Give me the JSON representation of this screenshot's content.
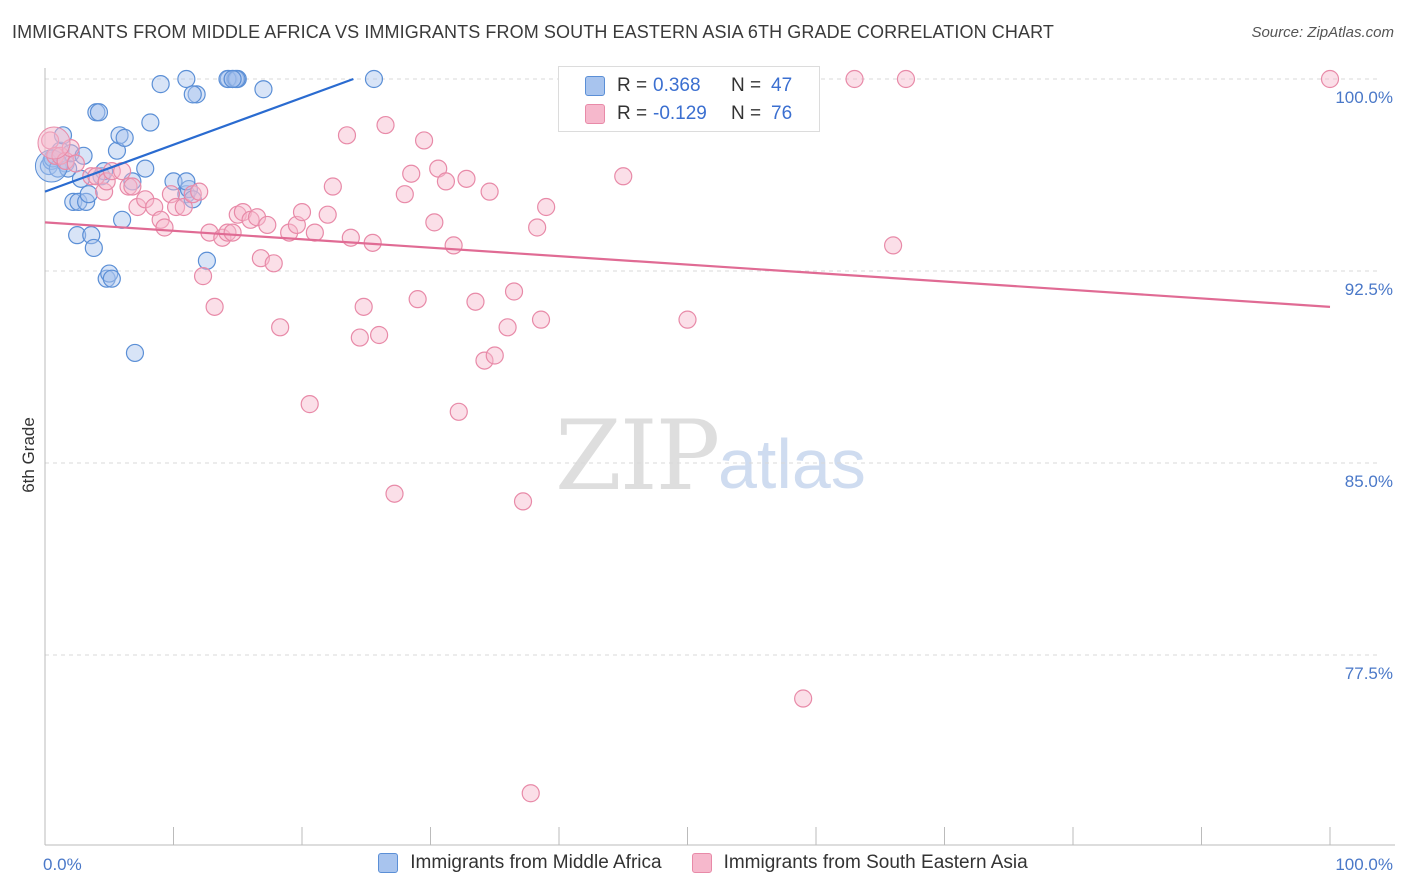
{
  "title": "IMMIGRANTS FROM MIDDLE AFRICA VS IMMIGRANTS FROM SOUTH EASTERN ASIA 6TH GRADE CORRELATION CHART",
  "source": "Source: ZipAtlas.com",
  "watermark": {
    "zip": "ZIP",
    "atlas": "atlas"
  },
  "legend": {
    "r_label": "R =",
    "n_label": "N =",
    "rows": [
      {
        "r": "0.368",
        "n": "47"
      },
      {
        "r": "-0.129",
        "n": "76"
      }
    ]
  },
  "colors": {
    "blue_fill": "#a8c4ee",
    "blue_stroke": "#5b8fd6",
    "blue_line": "#2a6bd0",
    "pink_fill": "#f6b8cc",
    "pink_stroke": "#e88aa8",
    "pink_line": "#e06b94",
    "grid": "#d8d8d8",
    "tick_text": "#4a78c8"
  },
  "chart_data": {
    "type": "scatter",
    "xlabel": "",
    "ylabel": "6th Grade",
    "xlim": [
      0,
      100
    ],
    "ylim": [
      71.0,
      101.5
    ],
    "x_tick_labels": [
      "0.0%",
      "100.0%"
    ],
    "y_ticks": [
      100.0,
      92.5,
      85.0,
      77.5
    ],
    "y_tick_labels": [
      "100.0%",
      "92.5%",
      "85.0%",
      "77.5%"
    ],
    "grid": true,
    "series": [
      {
        "name": "Immigrants from Middle Africa",
        "color": "blue",
        "trend": {
          "x": [
            0,
            24
          ],
          "y": [
            95.6,
            100.0
          ]
        },
        "points": [
          [
            0.3,
            96.6
          ],
          [
            0.5,
            96.8
          ],
          [
            0.6,
            96.9
          ],
          [
            0.8,
            97.0
          ],
          [
            1.0,
            96.5
          ],
          [
            1.2,
            97.2
          ],
          [
            1.4,
            97.8
          ],
          [
            1.6,
            96.7
          ],
          [
            1.8,
            96.5
          ],
          [
            2.0,
            97.1
          ],
          [
            2.2,
            95.2
          ],
          [
            2.5,
            93.9
          ],
          [
            2.6,
            95.2
          ],
          [
            2.8,
            96.1
          ],
          [
            3.0,
            97.0
          ],
          [
            3.2,
            95.2
          ],
          [
            3.4,
            95.5
          ],
          [
            3.6,
            93.9
          ],
          [
            3.8,
            93.4
          ],
          [
            4.0,
            98.7
          ],
          [
            4.2,
            98.7
          ],
          [
            4.4,
            96.2
          ],
          [
            4.6,
            96.4
          ],
          [
            4.8,
            92.2
          ],
          [
            5.0,
            92.4
          ],
          [
            5.2,
            92.2
          ],
          [
            5.6,
            97.2
          ],
          [
            5.8,
            97.8
          ],
          [
            6.0,
            94.5
          ],
          [
            6.2,
            97.7
          ],
          [
            7.0,
            89.3
          ],
          [
            6.8,
            96.0
          ],
          [
            7.8,
            96.5
          ],
          [
            8.2,
            98.3
          ],
          [
            9.0,
            99.8
          ],
          [
            10.0,
            96.0
          ],
          [
            11.0,
            100.0
          ],
          [
            11.8,
            99.4
          ],
          [
            11.0,
            95.5
          ],
          [
            11.2,
            95.7
          ],
          [
            11.5,
            99.4
          ],
          [
            11.0,
            96.0
          ],
          [
            11.5,
            95.3
          ],
          [
            12.6,
            92.9
          ],
          [
            14.3,
            100.0
          ],
          [
            14.6,
            100.0
          ],
          [
            14.8,
            100.0
          ],
          [
            15.0,
            100.0
          ],
          [
            14.2,
            100.0
          ],
          [
            14.9,
            100.0
          ],
          [
            14.6,
            100.0
          ],
          [
            17.0,
            99.6
          ],
          [
            25.6,
            100.0
          ]
        ],
        "big_points": [
          [
            0.5,
            96.6
          ]
        ]
      },
      {
        "name": "Immigrants from South Eastern Asia",
        "color": "pink",
        "trend": {
          "x": [
            0,
            100
          ],
          "y": [
            94.4,
            91.1
          ]
        },
        "points": [
          [
            0.4,
            97.6
          ],
          [
            0.8,
            97.0
          ],
          [
            1.2,
            97.0
          ],
          [
            1.6,
            96.8
          ],
          [
            2.0,
            97.3
          ],
          [
            2.4,
            96.7
          ],
          [
            3.6,
            96.2
          ],
          [
            4.0,
            96.2
          ],
          [
            4.6,
            95.6
          ],
          [
            4.8,
            96.0
          ],
          [
            5.2,
            96.4
          ],
          [
            6.0,
            96.4
          ],
          [
            6.5,
            95.8
          ],
          [
            6.8,
            95.8
          ],
          [
            7.2,
            95.0
          ],
          [
            7.8,
            95.3
          ],
          [
            8.5,
            95.0
          ],
          [
            9.0,
            94.5
          ],
          [
            9.3,
            94.2
          ],
          [
            9.8,
            95.5
          ],
          [
            10.2,
            95.0
          ],
          [
            10.8,
            95.0
          ],
          [
            11.5,
            95.5
          ],
          [
            12.0,
            95.6
          ],
          [
            12.3,
            92.3
          ],
          [
            12.8,
            94.0
          ],
          [
            13.2,
            91.1
          ],
          [
            13.8,
            93.8
          ],
          [
            14.2,
            94.0
          ],
          [
            14.6,
            94.0
          ],
          [
            15.0,
            94.7
          ],
          [
            15.4,
            94.8
          ],
          [
            16.0,
            94.5
          ],
          [
            16.5,
            94.6
          ],
          [
            16.8,
            93.0
          ],
          [
            17.3,
            94.3
          ],
          [
            17.8,
            92.8
          ],
          [
            18.3,
            90.3
          ],
          [
            19.0,
            94.0
          ],
          [
            19.6,
            94.3
          ],
          [
            20.0,
            94.8
          ],
          [
            20.6,
            87.3
          ],
          [
            21.0,
            94.0
          ],
          [
            22.0,
            94.7
          ],
          [
            22.4,
            95.8
          ],
          [
            23.5,
            97.8
          ],
          [
            23.8,
            93.8
          ],
          [
            24.5,
            89.9
          ],
          [
            24.8,
            91.1
          ],
          [
            25.5,
            93.6
          ],
          [
            26.0,
            90.0
          ],
          [
            26.5,
            98.2
          ],
          [
            27.2,
            83.8
          ],
          [
            28.0,
            95.5
          ],
          [
            28.5,
            96.3
          ],
          [
            29.0,
            91.4
          ],
          [
            29.5,
            97.6
          ],
          [
            30.3,
            94.4
          ],
          [
            30.6,
            96.5
          ],
          [
            31.2,
            96.0
          ],
          [
            31.8,
            93.5
          ],
          [
            32.2,
            87.0
          ],
          [
            32.8,
            96.1
          ],
          [
            33.5,
            91.3
          ],
          [
            34.2,
            89.0
          ],
          [
            34.6,
            95.6
          ],
          [
            35.0,
            89.2
          ],
          [
            36.0,
            90.3
          ],
          [
            36.5,
            91.7
          ],
          [
            37.2,
            83.5
          ],
          [
            38.3,
            94.2
          ],
          [
            38.6,
            90.6
          ],
          [
            39.0,
            95.0
          ],
          [
            37.8,
            72.1
          ],
          [
            45.0,
            96.2
          ],
          [
            50.0,
            90.6
          ],
          [
            59.0,
            75.8
          ],
          [
            63.0,
            100.0
          ],
          [
            67.0,
            100.0
          ],
          [
            66.0,
            93.5
          ],
          [
            100.0,
            100.0
          ]
        ],
        "big_points": [
          [
            0.7,
            97.5
          ]
        ]
      }
    ]
  },
  "bottom_legend": [
    "Immigrants from Middle Africa",
    "Immigrants from South Eastern Asia"
  ]
}
